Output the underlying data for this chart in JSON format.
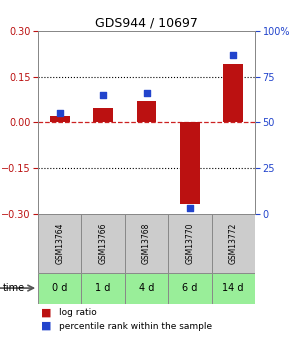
{
  "title": "GDS944 / 10697",
  "samples": [
    "GSM13764",
    "GSM13766",
    "GSM13768",
    "GSM13770",
    "GSM13772"
  ],
  "time_labels": [
    "0 d",
    "1 d",
    "4 d",
    "6 d",
    "14 d"
  ],
  "log_ratio": [
    0.022,
    0.048,
    0.072,
    -0.268,
    0.192
  ],
  "percentile": [
    55,
    65,
    66,
    3,
    87
  ],
  "ylim_left": [
    -0.3,
    0.3
  ],
  "ylim_right": [
    0,
    100
  ],
  "yticks_left": [
    -0.3,
    -0.15,
    0,
    0.15,
    0.3
  ],
  "yticks_right": [
    0,
    25,
    50,
    75,
    100
  ],
  "bar_color": "#bb1111",
  "dot_color": "#2244cc",
  "bg_color": "#ffffff",
  "zero_line_color": "#cc2222",
  "sample_box_color": "#cccccc",
  "time_box_color": "#99ee99",
  "legend_log_color": "#bb1111",
  "legend_pct_color": "#2244cc"
}
